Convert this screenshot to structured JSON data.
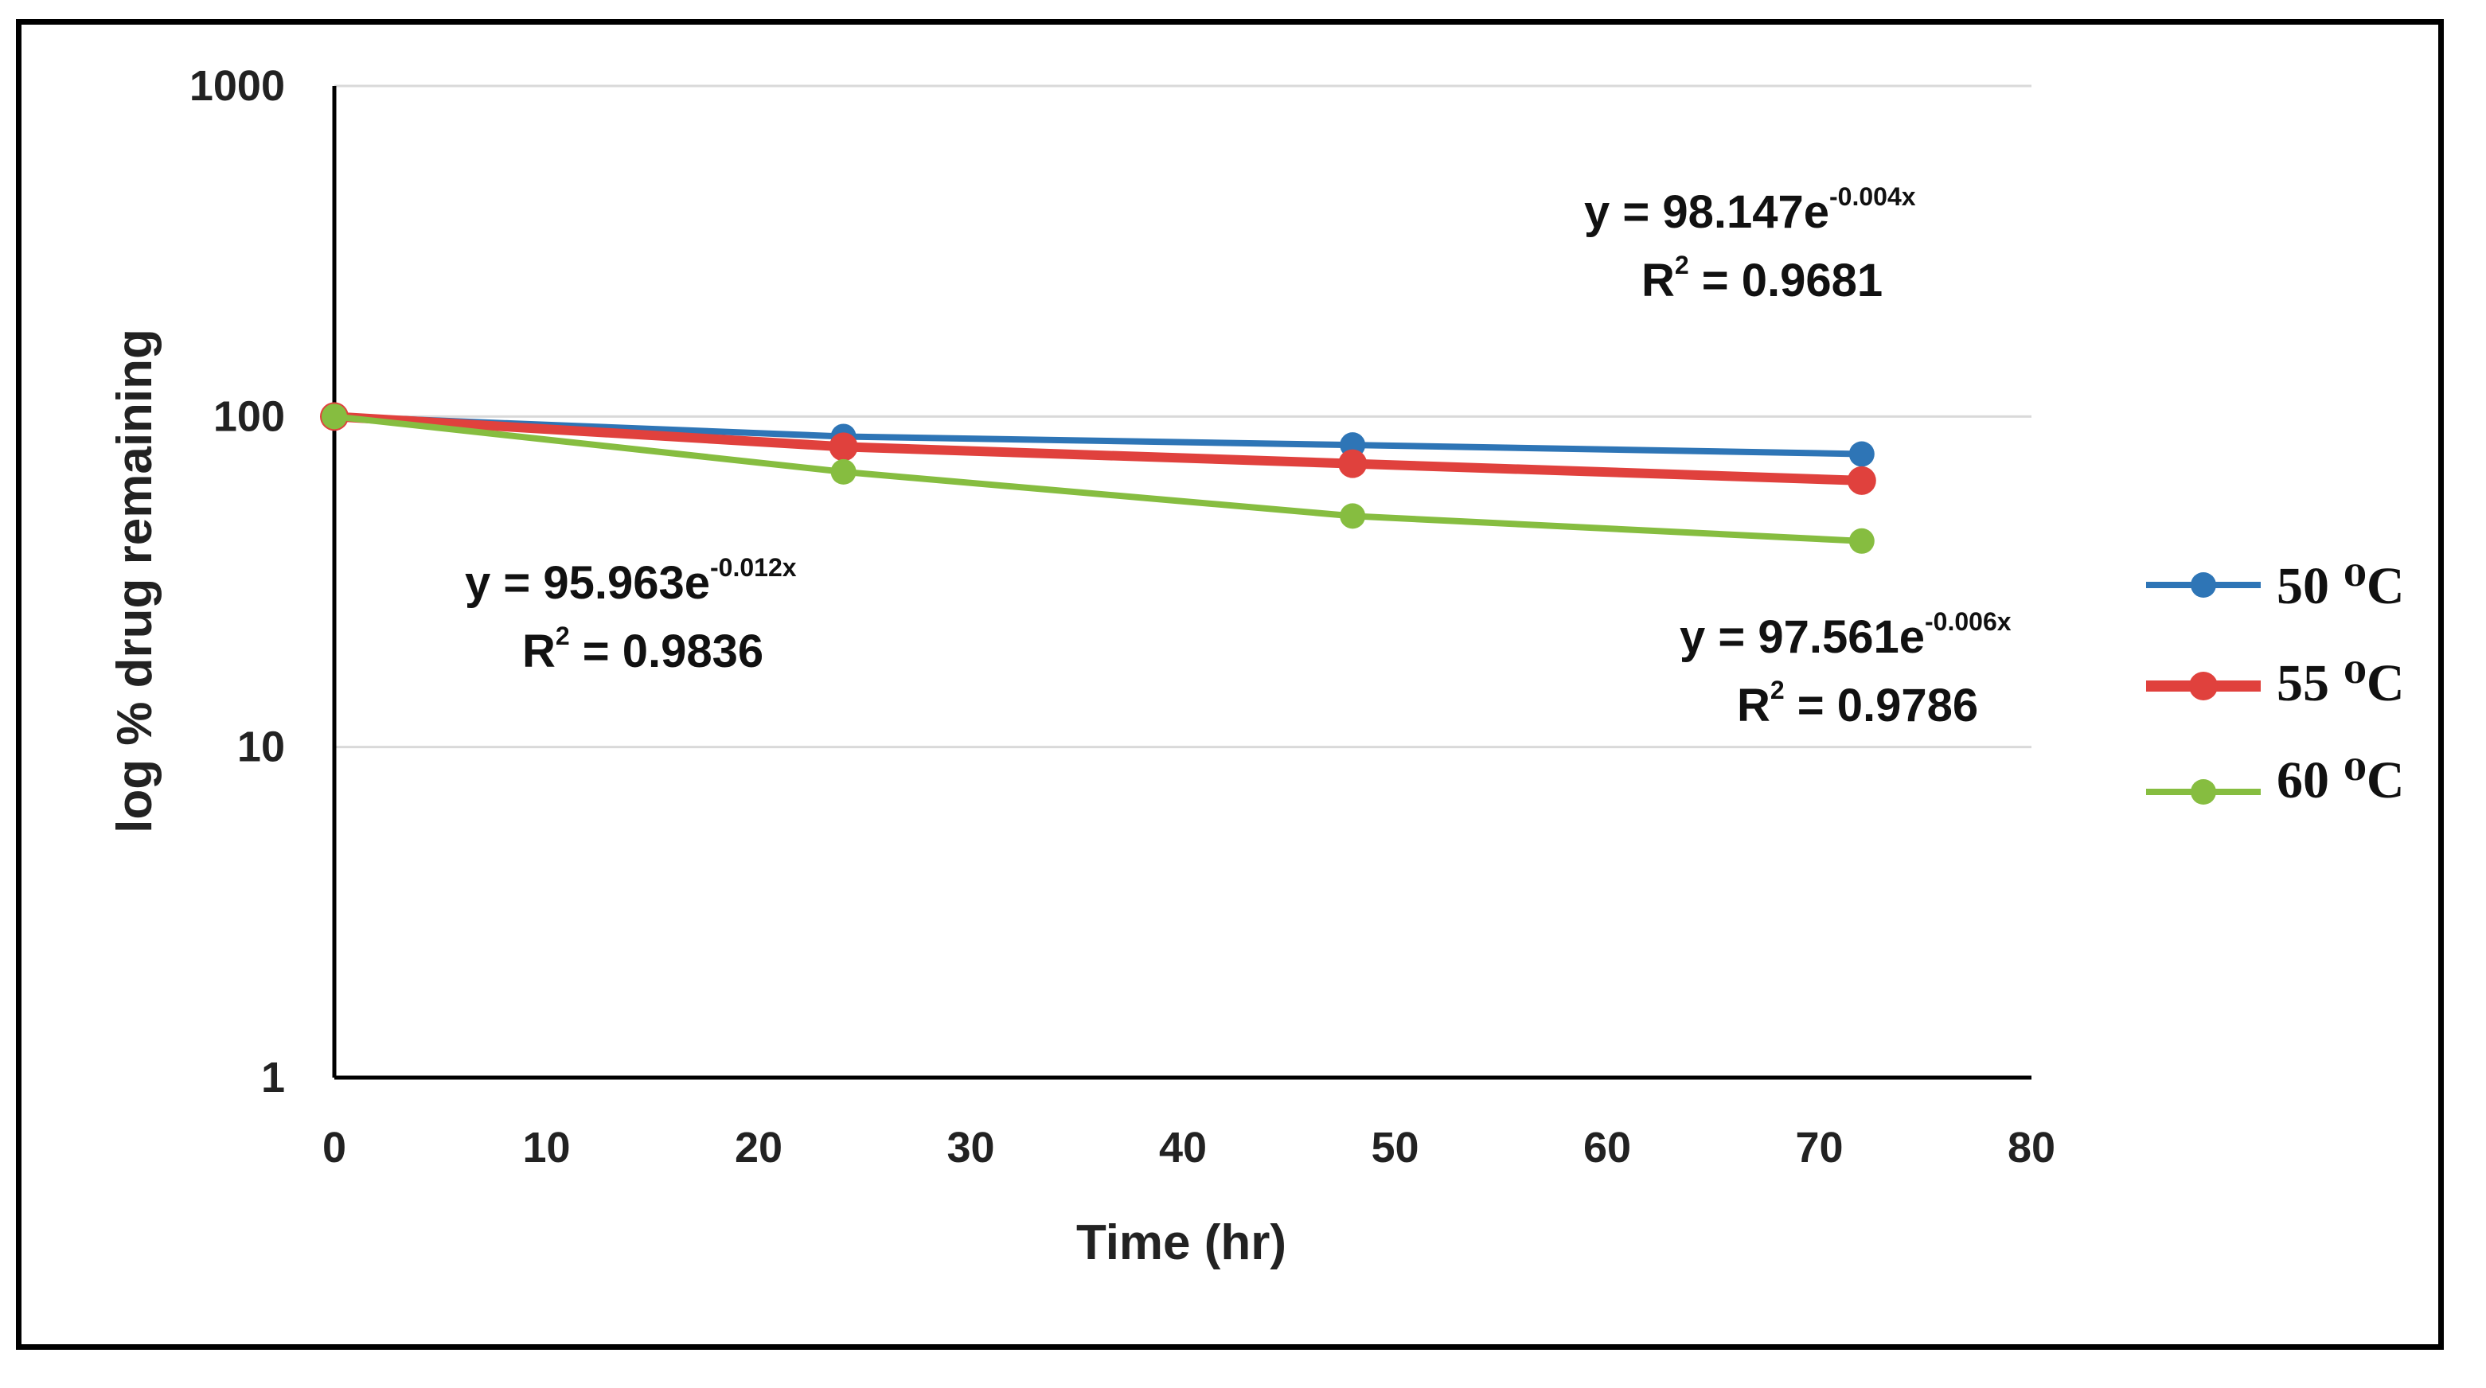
{
  "chart_data": {
    "type": "line",
    "title": "",
    "xlabel": "Time (hr)",
    "ylabel": "log % drug remaining",
    "xlim": [
      0,
      80
    ],
    "ylim": [
      1,
      1000
    ],
    "y_scale": "log",
    "x_ticks": [
      "0",
      "10",
      "20",
      "30",
      "40",
      "50",
      "60",
      "70",
      "80"
    ],
    "y_ticks": [
      "1",
      "10",
      "100",
      "1000"
    ],
    "grid": true,
    "legend_position": "right",
    "series": [
      {
        "name": "50",
        "unit": "⁰C",
        "color": "#2e75b6",
        "x": [
          0,
          24,
          48,
          72
        ],
        "y": [
          100,
          87,
          82,
          77
        ]
      },
      {
        "name": "55",
        "unit": "⁰C",
        "color": "#e0413d",
        "x": [
          0,
          24,
          48,
          72
        ],
        "y": [
          100,
          81,
          72,
          64
        ]
      },
      {
        "name": "60",
        "unit": "⁰C",
        "color": "#86bd40",
        "x": [
          0,
          24,
          48,
          72
        ],
        "y": [
          100,
          68,
          50,
          42
        ]
      }
    ],
    "annotations": [
      {
        "id": "50",
        "eq_main": "y = 98.147e",
        "eq_exp": "-0.004x",
        "r2_label": "R",
        "r2_sup": "2",
        "r2_value": " = 0.9681"
      },
      {
        "id": "60",
        "eq_main": "y = 95.963e",
        "eq_exp": "-0.012x",
        "r2_label": "R",
        "r2_sup": "2",
        "r2_value": " = 0.9836"
      },
      {
        "id": "55",
        "eq_main": "y = 97.561e",
        "eq_exp": "-0.006x",
        "r2_label": "R",
        "r2_sup": "2",
        "r2_value": " = 0.9786"
      }
    ]
  }
}
